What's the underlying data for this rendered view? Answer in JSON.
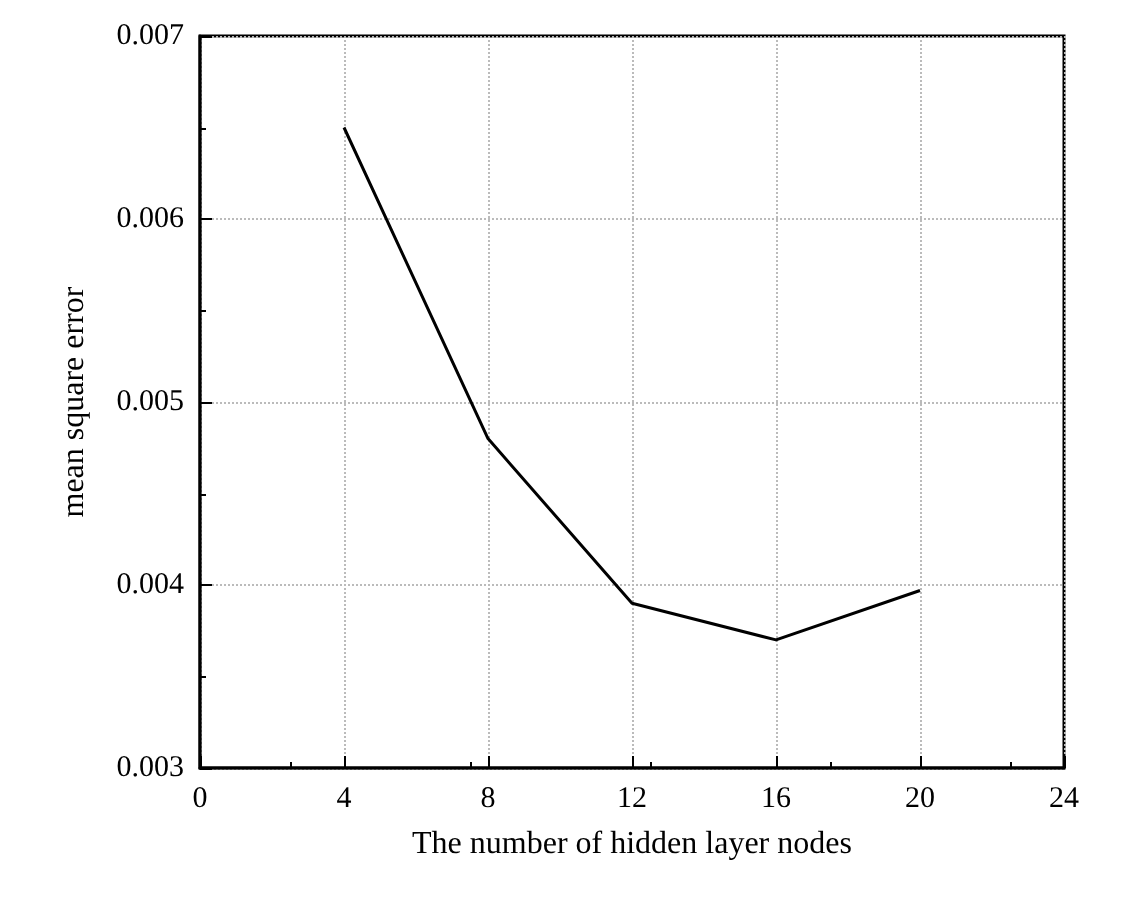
{
  "chart_data": {
    "type": "line",
    "xlabel": "The number of hidden layer nodes",
    "ylabel": "mean square error",
    "x": [
      4,
      8,
      12,
      16,
      20
    ],
    "series": [
      {
        "color": "#000000",
        "values": [
          0.0065,
          0.0048,
          0.0039,
          0.0037,
          0.00397
        ]
      }
    ],
    "xlim": [
      0,
      24
    ],
    "xticks": [
      0,
      4,
      8,
      12,
      16,
      20,
      24
    ],
    "ylim": [
      0.003,
      0.007
    ],
    "yticks": [
      0.003,
      0.004,
      0.005,
      0.006,
      0.007
    ],
    "grid": true,
    "marker": "none",
    "line_style": "solid"
  }
}
